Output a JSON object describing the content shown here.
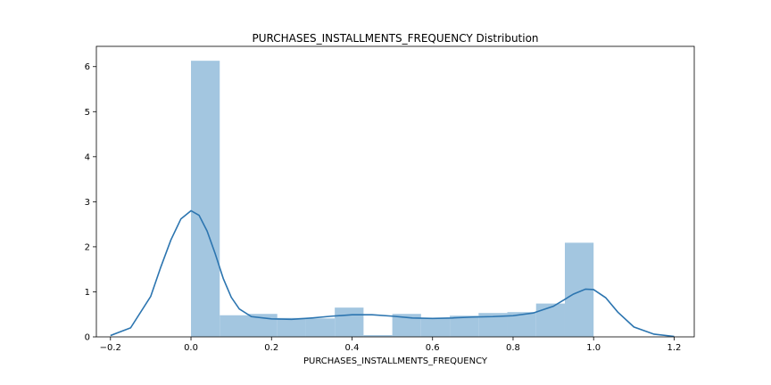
{
  "chart_data": {
    "type": "bar",
    "title": "PURCHASES_INSTALLMENTS_FREQUENCY Distribution",
    "xlabel": "PURCHASES_INSTALLMENTS_FREQUENCY",
    "ylabel": "",
    "xlim": [
      -0.235,
      1.25
    ],
    "ylim": [
      0,
      6.45
    ],
    "xticks": [
      -0.2,
      0.0,
      0.2,
      0.4,
      0.6,
      0.8,
      1.0,
      1.2
    ],
    "xtick_labels": [
      "−0.2",
      "0.0",
      "0.2",
      "0.4",
      "0.6",
      "0.8",
      "1.0",
      "1.2"
    ],
    "yticks": [
      0,
      1,
      2,
      3,
      4,
      5,
      6
    ],
    "ytick_labels": [
      "0",
      "1",
      "2",
      "3",
      "4",
      "5",
      "6"
    ],
    "grid": false,
    "histogram": {
      "bin_edges": [
        0.0,
        0.0714,
        0.1429,
        0.2143,
        0.2857,
        0.3571,
        0.4286,
        0.5,
        0.5714,
        0.6429,
        0.7143,
        0.7857,
        0.8571,
        0.9286,
        1.0
      ],
      "densities": [
        6.13,
        0.48,
        0.51,
        0.42,
        0.41,
        0.65,
        0.04,
        0.51,
        0.42,
        0.47,
        0.53,
        0.55,
        0.74,
        2.09
      ],
      "color": "#a3c6e0"
    },
    "kde": {
      "color": "#2c75b0",
      "x": [
        -0.2,
        -0.15,
        -0.1,
        -0.075,
        -0.05,
        -0.025,
        0.0,
        0.02,
        0.04,
        0.06,
        0.08,
        0.1,
        0.12,
        0.15,
        0.2,
        0.25,
        0.3,
        0.35,
        0.4,
        0.45,
        0.5,
        0.55,
        0.6,
        0.65,
        0.7,
        0.75,
        0.8,
        0.85,
        0.9,
        0.95,
        0.98,
        1.0,
        1.03,
        1.06,
        1.1,
        1.15,
        1.2
      ],
      "y": [
        0.03,
        0.2,
        0.9,
        1.55,
        2.15,
        2.62,
        2.8,
        2.7,
        2.35,
        1.85,
        1.3,
        0.88,
        0.62,
        0.45,
        0.4,
        0.39,
        0.42,
        0.46,
        0.49,
        0.49,
        0.46,
        0.42,
        0.41,
        0.42,
        0.44,
        0.45,
        0.47,
        0.53,
        0.68,
        0.95,
        1.06,
        1.05,
        0.87,
        0.55,
        0.22,
        0.06,
        0.01
      ]
    }
  }
}
